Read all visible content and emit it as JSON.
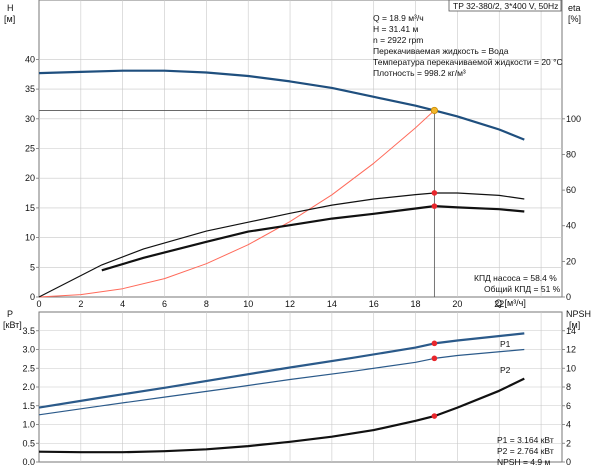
{
  "header": {
    "model": "TP 32-380/2, 3*400 V, 50Hz"
  },
  "top_info": {
    "lines": [
      "Q = 18.9 м³/ч",
      "H = 31.41 м",
      "n = 2922 rpm",
      "Перекачиваемая жидкость = Вода",
      "Температура перекачиваемой жидкости = 20 °C",
      "Плотность = 998.2 кг/м³"
    ],
    "efficiency": [
      "КПД насоса = 58.4 %",
      "Общий КПД = 51 %"
    ]
  },
  "bottom_info": {
    "lines": [
      "P1 = 3.164 кВт",
      "P2 = 2.764 кВт",
      "NPSH = 4.9 м"
    ]
  },
  "colors": {
    "head_curve": "#1f4f7e",
    "system_curve": "#ff6a5a",
    "eta_curves": "#111111",
    "power_curves": "#2b5a8a",
    "npsh_curve": "#111111",
    "duty_point": "#e8262c",
    "head_duty_point": "#f2b62b",
    "grid": "#c8c8c8"
  },
  "chart_data": [
    {
      "type": "line",
      "panel": "head-efficiency",
      "xlabel": "Q [м³/ч]",
      "ylabel": "H [м]",
      "y2label": "eta [%]",
      "xlim": [
        0,
        25
      ],
      "ylim": [
        0,
        50
      ],
      "y2lim": [
        0,
        166.7
      ],
      "xticks": [
        0,
        2,
        4,
        6,
        8,
        10,
        12,
        14,
        16,
        18,
        20,
        22
      ],
      "yticks": [
        0,
        5,
        10,
        15,
        20,
        25,
        30,
        35,
        40
      ],
      "y2ticks": [
        0,
        20,
        40,
        60,
        80,
        100
      ],
      "grid": true,
      "series": [
        {
          "role": "head",
          "axis": "left",
          "x": [
            0,
            2,
            4,
            6,
            8,
            10,
            12,
            14,
            16,
            18,
            18.9,
            20,
            22,
            23.2
          ],
          "values": [
            37.7,
            37.9,
            38.1,
            38.1,
            37.8,
            37.2,
            36.3,
            35.2,
            33.7,
            32.2,
            31.41,
            30.4,
            28.2,
            26.5
          ]
        },
        {
          "role": "system",
          "axis": "left",
          "x": [
            0,
            2,
            4,
            6,
            8,
            10,
            12,
            14,
            16,
            18,
            18.9
          ],
          "values": [
            0,
            0.4,
            1.4,
            3.1,
            5.6,
            8.8,
            12.7,
            17.2,
            22.5,
            28.5,
            31.41
          ]
        },
        {
          "role": "efficiency-pump",
          "axis": "right",
          "x": [
            0,
            3,
            5,
            8,
            10,
            12,
            14,
            16,
            18,
            18.9,
            20,
            22,
            23.2
          ],
          "values": [
            0,
            18,
            27,
            37,
            42,
            47,
            51.6,
            55,
            57.5,
            58.4,
            58.4,
            57,
            55
          ]
        },
        {
          "role": "efficiency-total",
          "axis": "right",
          "x": [
            3,
            5,
            8,
            10,
            12,
            14,
            16,
            18,
            18.9,
            20,
            22,
            23.2
          ],
          "values": [
            15,
            22,
            31,
            36.7,
            40.3,
            44,
            46.7,
            49.7,
            51,
            50.3,
            49.3,
            48
          ]
        }
      ],
      "duty_points": [
        {
          "x": 18.9,
          "y": 31.41,
          "axis": "left"
        },
        {
          "x": 18.9,
          "y": 58.4,
          "axis": "right"
        },
        {
          "x": 18.9,
          "y": 51,
          "axis": "right"
        }
      ]
    },
    {
      "type": "line",
      "panel": "power-npsh",
      "ylabel": "P [кВт]",
      "y2label": "NPSH [м]",
      "xlim": [
        0,
        25
      ],
      "ylim": [
        0,
        4.0
      ],
      "y2lim": [
        0,
        16
      ],
      "yticks": [
        0,
        0.5,
        1.0,
        1.5,
        2.0,
        2.5,
        3.0,
        3.5
      ],
      "y2ticks": [
        0,
        2,
        4,
        6,
        8,
        10,
        12,
        14
      ],
      "grid": true,
      "series": [
        {
          "name": "P1",
          "axis": "left",
          "x": [
            0,
            3,
            6,
            9,
            12,
            15,
            18,
            18.9,
            20,
            23.2
          ],
          "values": [
            1.45,
            1.72,
            1.98,
            2.25,
            2.52,
            2.78,
            3.05,
            3.164,
            3.24,
            3.43
          ]
        },
        {
          "name": "P2",
          "axis": "left",
          "x": [
            0,
            3,
            6,
            9,
            12,
            15,
            18,
            18.9,
            20,
            23.2
          ],
          "values": [
            1.26,
            1.5,
            1.73,
            1.96,
            2.2,
            2.42,
            2.66,
            2.764,
            2.84,
            3.0
          ]
        },
        {
          "role": "npsh",
          "axis": "right",
          "x": [
            0,
            2,
            4,
            6,
            8,
            10,
            12,
            14,
            16,
            18,
            18.9,
            20,
            22,
            23.2
          ],
          "values": [
            1.1,
            1.05,
            1.05,
            1.15,
            1.35,
            1.7,
            2.15,
            2.7,
            3.4,
            4.4,
            4.9,
            5.8,
            7.6,
            8.9
          ]
        }
      ],
      "duty_points": [
        {
          "x": 18.9,
          "y": 3.164,
          "axis": "left"
        },
        {
          "x": 18.9,
          "y": 2.764,
          "axis": "left"
        },
        {
          "x": 18.9,
          "y": 4.9,
          "axis": "right"
        }
      ]
    }
  ]
}
